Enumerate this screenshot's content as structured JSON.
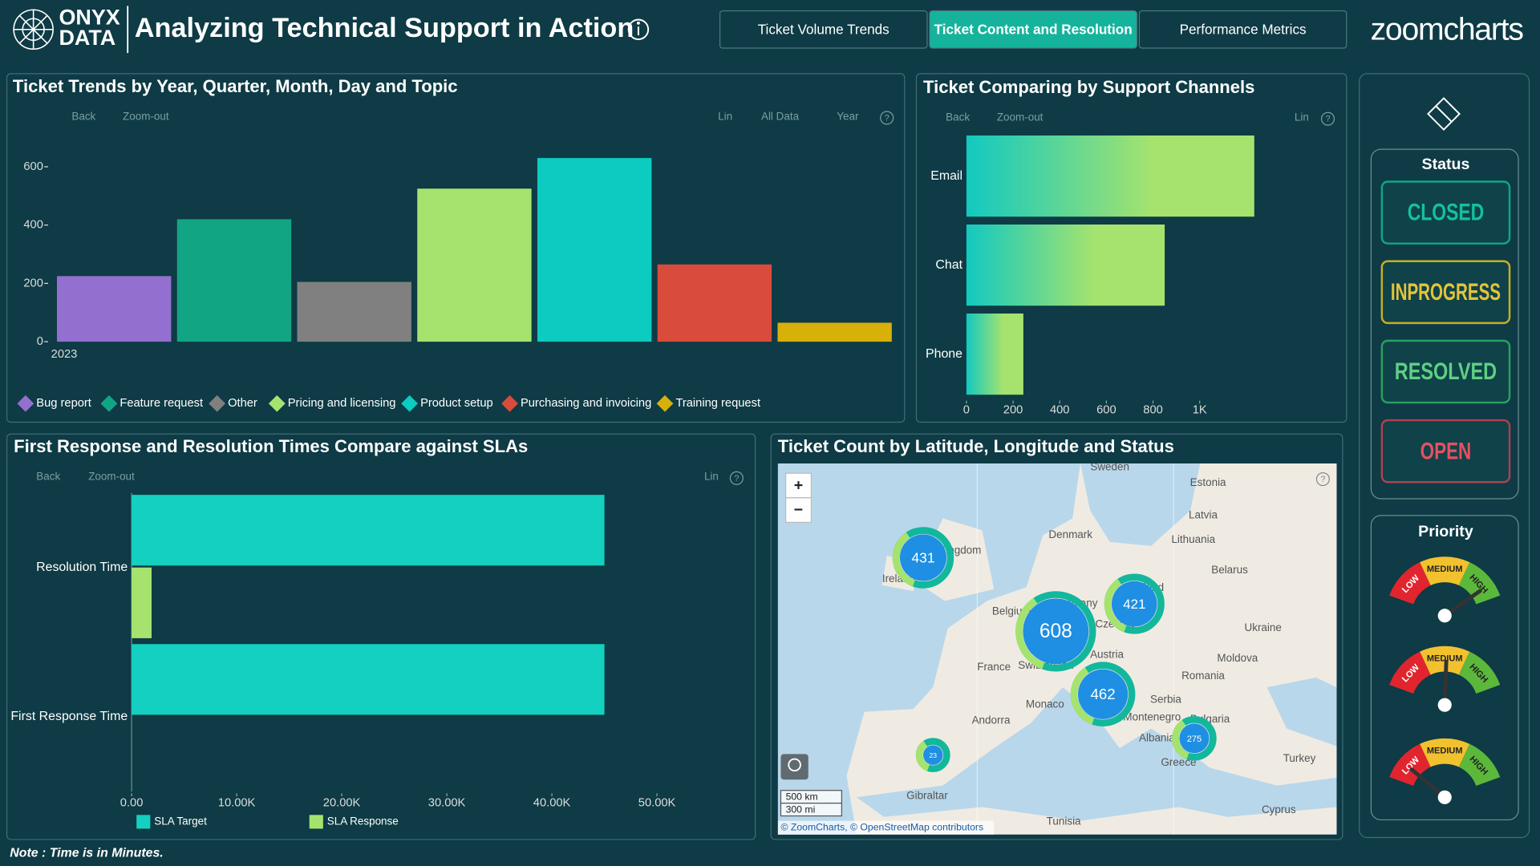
{
  "header": {
    "brand_top": "ONYX",
    "brand_bottom": "DATA",
    "title": "Analyzing Technical Support in Action",
    "tabs": [
      "Ticket Volume Trends",
      "Ticket Content and Resolution",
      "Performance Metrics"
    ],
    "active_tab": 1,
    "logo": "zoomcharts"
  },
  "toolbar": {
    "back": "Back",
    "zoom_out": "Zoom-out",
    "lin": "Lin",
    "all_data": "All Data",
    "year": "Year",
    "help": "?"
  },
  "chart_data": [
    {
      "type": "bar",
      "title": "Ticket Trends by Year, Quarter, Month, Day and Topic",
      "categories": [
        "2023"
      ],
      "series": [
        {
          "name": "Bug report",
          "color": "#9370d0",
          "values": [
            225
          ]
        },
        {
          "name": "Feature request",
          "color": "#12a584",
          "values": [
            420
          ]
        },
        {
          "name": "Other",
          "color": "#808080",
          "values": [
            205
          ]
        },
        {
          "name": "Pricing and licensing",
          "color": "#a6e36e",
          "values": [
            525
          ]
        },
        {
          "name": "Product setup",
          "color": "#0ccbc0",
          "values": [
            630
          ]
        },
        {
          "name": "Purchasing and invoicing",
          "color": "#d94c3b",
          "values": [
            265
          ]
        },
        {
          "name": "Training request",
          "color": "#d8b00a",
          "values": [
            65
          ]
        }
      ],
      "ylim": [
        0,
        650
      ],
      "yticks": [
        0,
        200,
        400,
        600
      ]
    },
    {
      "type": "hbar",
      "title": "Ticket Comparing by Support Channels",
      "categories": [
        "Email",
        "Chat",
        "Phone"
      ],
      "values": [
        1234,
        850,
        244
      ],
      "color_gradient": [
        "#12c9c0",
        "#a6e36e"
      ],
      "xlim": [
        0,
        1400
      ],
      "xticks": [
        0,
        200,
        400,
        600,
        800,
        {
          "value": 1000,
          "label": "1K"
        }
      ]
    },
    {
      "type": "hbar",
      "title": "First Response and Resolution Times Compare against SLAs",
      "categories": [
        "Resolution Time",
        "First Response Time"
      ],
      "series": [
        {
          "name": "SLA Target",
          "color": "#14d0c0",
          "values": [
            45000,
            45000
          ]
        },
        {
          "name": "SLA Response",
          "color": "#a6e36e",
          "values": [
            1900,
            0
          ]
        }
      ],
      "xlim": [
        0,
        53000
      ],
      "xticks": [
        {
          "value": 0,
          "label": "0.00"
        },
        {
          "value": 10000,
          "label": "10.00K"
        },
        {
          "value": 20000,
          "label": "20.00K"
        },
        {
          "value": 30000,
          "label": "30.00K"
        },
        {
          "value": 40000,
          "label": "40.00K"
        },
        {
          "value": 50000,
          "label": "50.00K"
        }
      ]
    }
  ],
  "map": {
    "title": "Ticket Count by Latitude, Longitude and Status",
    "clusters": [
      431,
      608,
      421,
      462,
      275,
      23
    ],
    "places": [
      "Sweden",
      "Estonia",
      "Latvia",
      "Denmark",
      "Lithuania",
      "Belarus",
      "Ukraine",
      "Moldova",
      "Romania",
      "France",
      "Austria",
      "Serbia",
      "Monaco",
      "Andorra",
      "Montenegro",
      "Bulgaria",
      "Albania",
      "Greece",
      "Turkey",
      "Gibraltar",
      "Tunisia",
      "Cyprus",
      "Ireland",
      "United Kingdom",
      "Belgium",
      "Czechia",
      "Switzerland",
      "Poland",
      "Germany"
    ],
    "zoom_controls": [
      "+",
      "−"
    ],
    "scale": [
      "500 km",
      "300 mi"
    ],
    "attribution": "© ZoomCharts, © OpenStreetMap contributors"
  },
  "status": {
    "title": "Status",
    "options": [
      "CLOSED",
      "INPROGRESS",
      "RESOLVED",
      "OPEN"
    ]
  },
  "priority": {
    "title": "Priority",
    "levels": [
      "LOW",
      "MEDIUM",
      "HIGH"
    ]
  },
  "note": "Note : Time is in Minutes."
}
